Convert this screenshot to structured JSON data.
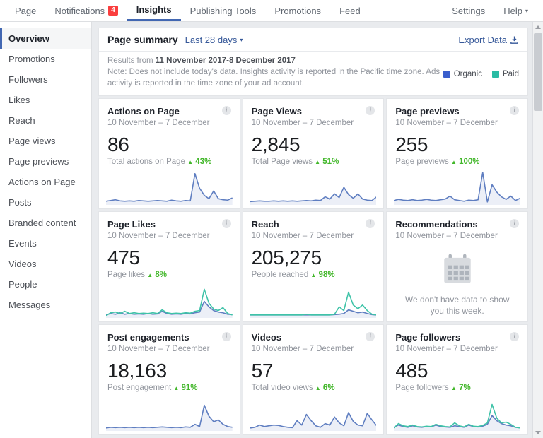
{
  "icons": {
    "info": "i",
    "caret_down": "▾",
    "up_arrow": "▲"
  },
  "nav": {
    "items": [
      {
        "label": "Page"
      },
      {
        "label": "Notifications",
        "badge": "4"
      },
      {
        "label": "Insights"
      },
      {
        "label": "Publishing Tools"
      },
      {
        "label": "Promotions"
      },
      {
        "label": "Feed"
      }
    ],
    "settings_label": "Settings",
    "help_label": "Help"
  },
  "sidebar": {
    "items": [
      {
        "label": "Overview"
      },
      {
        "label": "Promotions"
      },
      {
        "label": "Followers"
      },
      {
        "label": "Likes"
      },
      {
        "label": "Reach"
      },
      {
        "label": "Page views"
      },
      {
        "label": "Page previews"
      },
      {
        "label": "Actions on Page"
      },
      {
        "label": "Posts"
      },
      {
        "label": "Branded content"
      },
      {
        "label": "Events"
      },
      {
        "label": "Videos"
      },
      {
        "label": "People"
      },
      {
        "label": "Messages"
      }
    ]
  },
  "header": {
    "title": "Page summary",
    "range": "Last 28 days",
    "export_label": "Export Data"
  },
  "results": {
    "prefix": "Results from ",
    "range": "11 November 2017-8 December 2017",
    "note": "Note: Does not include today's data. Insights activity is reported in the Pacific time zone. Ads activity is reported in the time zone of your ad account."
  },
  "legend": {
    "organic": "Organic",
    "paid": "Paid",
    "organic_color": "#3a5fcd",
    "paid_color": "#2abca4"
  },
  "colors": {
    "spark_blue": "#5f7ec1",
    "spark_teal": "#3fc3a8",
    "green": "#42b72a",
    "link_blue": "#365899",
    "badge_red": "#fa3e3e"
  },
  "cards": [
    {
      "title": "Actions on Page",
      "date": "10 November – 7 December",
      "value": "86",
      "metric": "Total actions on Page",
      "change": "43%",
      "lines": [
        {
          "color": "#5f7ec1",
          "fill": true,
          "values": [
            10,
            12,
            14,
            11,
            10,
            11,
            10,
            12,
            11,
            10,
            11,
            12,
            11,
            10,
            13,
            11,
            10,
            12,
            11,
            85,
            45,
            26,
            17,
            38,
            17,
            14,
            13,
            19
          ]
        }
      ]
    },
    {
      "title": "Page Views",
      "date": "10 November – 7 December",
      "value": "2,845",
      "metric": "Total Page views",
      "change": "51%",
      "lines": [
        {
          "color": "#5f7ec1",
          "fill": true,
          "values": [
            9,
            10,
            11,
            10,
            10,
            11,
            10,
            11,
            10,
            11,
            10,
            11,
            12,
            11,
            13,
            12,
            22,
            16,
            30,
            20,
            48,
            28,
            18,
            30,
            16,
            13,
            12,
            22
          ]
        }
      ]
    },
    {
      "title": "Page previews",
      "date": "10 November – 7 December",
      "value": "255",
      "metric": "Page previews",
      "change": "100%",
      "lines": [
        {
          "color": "#5f7ec1",
          "fill": true,
          "values": [
            12,
            15,
            13,
            12,
            14,
            12,
            13,
            15,
            13,
            12,
            14,
            16,
            24,
            14,
            12,
            10,
            13,
            12,
            14,
            88,
            8,
            55,
            35,
            22,
            15,
            24,
            12,
            18
          ]
        }
      ]
    },
    {
      "title": "Page Likes",
      "date": "10 November – 7 December",
      "value": "475",
      "metric": "Page likes",
      "change": "8%",
      "lines": [
        {
          "color": "#5f7ec1",
          "fill": true,
          "values": [
            8,
            12,
            10,
            14,
            10,
            12,
            10,
            11,
            10,
            12,
            10,
            11,
            18,
            12,
            10,
            11,
            10,
            12,
            11,
            14,
            16,
            45,
            30,
            20,
            16,
            14,
            10,
            9
          ]
        },
        {
          "color": "#3fc3a8",
          "values": [
            6,
            14,
            16,
            12,
            18,
            12,
            14,
            12,
            13,
            12,
            14,
            12,
            22,
            14,
            12,
            13,
            12,
            14,
            13,
            18,
            20,
            78,
            40,
            24,
            20,
            28,
            12,
            8
          ]
        }
      ]
    },
    {
      "title": "Reach",
      "date": "10 November – 7 December",
      "value": "205,275",
      "metric": "People reached",
      "change": "98%",
      "lines": [
        {
          "color": "#5f7ec1",
          "fill": true,
          "values": [
            8,
            8,
            8,
            8,
            8,
            8,
            8,
            8,
            8,
            8,
            8,
            8,
            8,
            8,
            8,
            8,
            8,
            8,
            9,
            10,
            12,
            22,
            18,
            14,
            16,
            12,
            9,
            8
          ]
        },
        {
          "color": "#3fc3a8",
          "values": [
            8,
            8,
            8,
            8,
            8,
            8,
            8,
            8,
            8,
            8,
            8,
            8,
            10,
            8,
            8,
            8,
            8,
            8,
            10,
            30,
            20,
            70,
            35,
            25,
            35,
            20,
            10,
            8
          ]
        }
      ]
    },
    {
      "title": "Recommendations",
      "date": "10 November – 7 December",
      "no_data_message": "We don't have data to show you this week."
    },
    {
      "title": "Post engagements",
      "date": "10 November – 7 December",
      "value": "18,163",
      "metric": "Post engagement",
      "change": "91%",
      "lines": [
        {
          "color": "#5f7ec1",
          "fill": true,
          "values": [
            8,
            10,
            9,
            10,
            9,
            10,
            9,
            10,
            9,
            10,
            9,
            10,
            11,
            10,
            9,
            10,
            9,
            11,
            10,
            18,
            12,
            70,
            40,
            25,
            30,
            18,
            12,
            10
          ]
        }
      ]
    },
    {
      "title": "Videos",
      "date": "10 November – 7 December",
      "value": "57",
      "metric": "Total video views",
      "change": "6%",
      "lines": [
        {
          "color": "#5f7ec1",
          "fill": true,
          "values": [
            8,
            10,
            16,
            12,
            14,
            16,
            15,
            12,
            10,
            9,
            28,
            16,
            45,
            28,
            14,
            10,
            20,
            16,
            38,
            22,
            14,
            50,
            26,
            16,
            14,
            48,
            30,
            14
          ]
        }
      ]
    },
    {
      "title": "Page followers",
      "date": "10 November – 7 December",
      "value": "485",
      "metric": "Page followers",
      "change": "7%",
      "lines": [
        {
          "color": "#5f7ec1",
          "fill": true,
          "values": [
            10,
            16,
            12,
            10,
            14,
            11,
            10,
            12,
            11,
            16,
            12,
            11,
            10,
            14,
            12,
            10,
            16,
            12,
            11,
            13,
            18,
            42,
            28,
            20,
            16,
            14,
            10,
            9
          ]
        },
        {
          "color": "#3fc3a8",
          "values": [
            8,
            20,
            14,
            12,
            16,
            12,
            11,
            13,
            12,
            18,
            14,
            12,
            11,
            22,
            14,
            11,
            18,
            13,
            12,
            15,
            22,
            72,
            35,
            22,
            24,
            18,
            10,
            8
          ]
        }
      ]
    }
  ]
}
